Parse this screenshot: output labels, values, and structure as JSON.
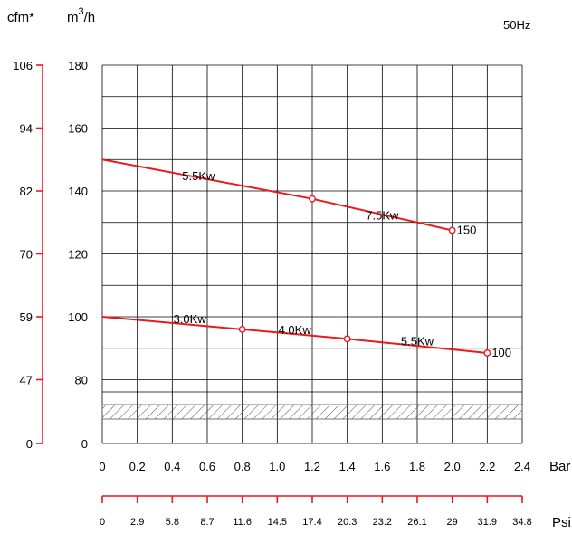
{
  "chart_data": {
    "type": "line",
    "frequency_label": "50Hz",
    "y_left_unit": "cfm*",
    "y_right_unit_base": "m",
    "y_right_unit_sup": "3",
    "y_right_unit_tail": "/h",
    "x_unit": "Bar",
    "x2_unit": "Psi",
    "x_range": [
      0,
      2.4
    ],
    "y_range_m3h": [
      0,
      180
    ],
    "y_axis_break": [
      0,
      72
    ],
    "x_ticks": [
      "0",
      "0.2",
      "0.4",
      "0.6",
      "0.8",
      "1.0",
      "1.2",
      "1.4",
      "1.6",
      "1.8",
      "2.0",
      "2.2",
      "2.4"
    ],
    "x_tick_values": [
      0,
      0.2,
      0.4,
      0.6,
      0.8,
      1.0,
      1.2,
      1.4,
      1.6,
      1.8,
      2.0,
      2.2,
      2.4
    ],
    "psi_ticks": [
      "0",
      "2.9",
      "5.8",
      "8.7",
      "11.6",
      "14.5",
      "17.4",
      "20.3",
      "23.2",
      "26.1",
      "29",
      "31.9",
      "34.8"
    ],
    "m3h_ticks": [
      {
        "value": 180,
        "label": "180"
      },
      {
        "value": 160,
        "label": "160"
      },
      {
        "value": 140,
        "label": "140"
      },
      {
        "value": 120,
        "label": "120"
      },
      {
        "value": 100,
        "label": "100"
      },
      {
        "value": 80,
        "label": "80"
      },
      {
        "value": 0,
        "label": "0"
      }
    ],
    "cfm_ticks": [
      {
        "value": 180,
        "label": "106"
      },
      {
        "value": 160,
        "label": "94"
      },
      {
        "value": 140,
        "label": "82"
      },
      {
        "value": 120,
        "label": "70"
      },
      {
        "value": 100,
        "label": "59"
      },
      {
        "value": 80,
        "label": "47"
      },
      {
        "value": 0,
        "label": "0"
      }
    ],
    "series": [
      {
        "name": "150",
        "x": [
          0,
          1.2,
          2.0
        ],
        "y": [
          150,
          137.5,
          127.5
        ],
        "marker_x": [
          1.2,
          2.0
        ],
        "segment_labels": [
          {
            "text": "5.5Kw",
            "x": 0.55,
            "y": 143.5
          },
          {
            "text": "7.5Kw",
            "x": 1.6,
            "y": 131
          }
        ]
      },
      {
        "name": "100",
        "x": [
          0,
          0.8,
          1.4,
          2.2
        ],
        "y": [
          100,
          96,
          93,
          88.5
        ],
        "marker_x": [
          0.8,
          1.4,
          2.2
        ],
        "segment_labels": [
          {
            "text": "3.0Kw",
            "x": 0.5,
            "y": 98
          },
          {
            "text": "4.0Kw",
            "x": 1.1,
            "y": 94.5
          },
          {
            "text": "5.5Kw",
            "x": 1.8,
            "y": 91
          }
        ]
      }
    ],
    "grid": true,
    "colors": {
      "curve": "#e8191f",
      "axis": "#e8191f",
      "grid": "#000000"
    }
  }
}
